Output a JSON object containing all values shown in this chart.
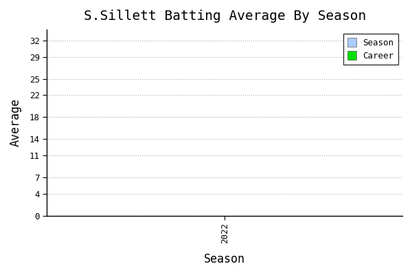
{
  "title": "S.Sillett Batting Average By Season",
  "xlabel": "Season",
  "ylabel": "Average",
  "x_ticks": [
    2022
  ],
  "y_ticks": [
    0,
    4,
    7,
    11,
    14,
    18,
    22,
    25,
    29,
    32
  ],
  "ylim": [
    0,
    34
  ],
  "xlim": [
    2021.5,
    2022.5
  ],
  "legend_labels": [
    "Season",
    "Career"
  ],
  "legend_colors": [
    "#aaccff",
    "#00dd00"
  ],
  "bg_color": "#ffffff",
  "plot_bg_color": "#ffffff",
  "grid_color": "#aaaaaa",
  "title_fontsize": 14,
  "axis_label_fontsize": 12,
  "tick_fontsize": 9
}
